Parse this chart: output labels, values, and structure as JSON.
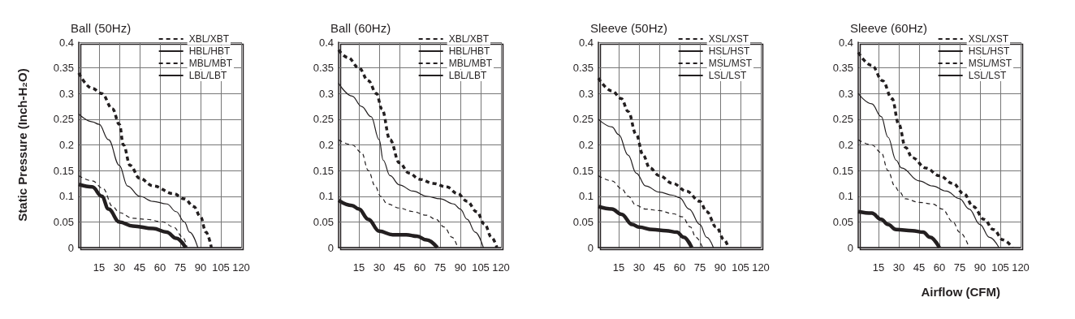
{
  "chart_data": [
    {
      "type": "line",
      "title": "Ball (50Hz)",
      "ylabel": "Static Pressure (Inch-H₂O)",
      "xlim": [
        0,
        120
      ],
      "xticks": [
        15,
        30,
        45,
        60,
        75,
        90,
        105,
        120
      ],
      "ylim": [
        0,
        0.4
      ],
      "yticks": [
        0,
        0.05,
        0.1,
        0.15,
        0.2,
        0.25,
        0.3,
        0.35,
        0.4
      ],
      "grid": true,
      "legend": "top right",
      "marker": "none",
      "series": [
        {
          "name": "XBL/XBT",
          "color": "#231f20",
          "line_style": "dashed",
          "x": [
            0,
            10,
            17,
            25,
            30,
            33,
            38,
            45,
            55,
            70,
            78,
            85,
            90,
            94,
            98
          ],
          "values": [
            0.34,
            0.31,
            0.3,
            0.27,
            0.24,
            0.2,
            0.16,
            0.135,
            0.12,
            0.105,
            0.095,
            0.08,
            0.06,
            0.03,
            0
          ]
        },
        {
          "name": "HBL/HBT",
          "color": "#231f20",
          "line_style": "solid",
          "x": [
            0,
            10,
            15,
            22,
            30,
            36,
            45,
            55,
            65,
            72,
            78,
            82,
            88
          ],
          "values": [
            0.26,
            0.245,
            0.24,
            0.21,
            0.16,
            0.12,
            0.1,
            0.09,
            0.085,
            0.07,
            0.05,
            0.03,
            0
          ]
        },
        {
          "name": "MBL/MBT",
          "color": "#231f20",
          "line_style": "dashed",
          "x": [
            0,
            10,
            18,
            25,
            30,
            40,
            50,
            62,
            70,
            77,
            80
          ],
          "values": [
            0.14,
            0.13,
            0.115,
            0.08,
            0.068,
            0.057,
            0.055,
            0.05,
            0.04,
            0.02,
            0
          ]
        },
        {
          "name": "LBL/LBT",
          "color": "#231f20",
          "line_style": "solid",
          "x": [
            0,
            10,
            17,
            22,
            30,
            40,
            55,
            65,
            72,
            79
          ],
          "values": [
            0.123,
            0.118,
            0.1,
            0.075,
            0.05,
            0.042,
            0.037,
            0.03,
            0.018,
            0
          ]
        }
      ]
    },
    {
      "type": "line",
      "title": "Ball (60Hz)",
      "xlim": [
        0,
        120
      ],
      "xticks": [
        15,
        30,
        45,
        60,
        75,
        90,
        105,
        120
      ],
      "ylim": [
        0,
        0.4
      ],
      "yticks": [
        0,
        0.05,
        0.1,
        0.15,
        0.2,
        0.25,
        0.3,
        0.35,
        0.4
      ],
      "grid": true,
      "legend": "top right",
      "marker": "none",
      "series": [
        {
          "name": "XBL/XBT",
          "color": "#231f20",
          "line_style": "dashed",
          "x": [
            0,
            7,
            15,
            22,
            28,
            32,
            38,
            45,
            52,
            60,
            70,
            80,
            88,
            95,
            102,
            108,
            113,
            117
          ],
          "values": [
            0.385,
            0.37,
            0.35,
            0.325,
            0.3,
            0.27,
            0.21,
            0.165,
            0.145,
            0.133,
            0.125,
            0.118,
            0.105,
            0.09,
            0.07,
            0.045,
            0.02,
            0
          ]
        },
        {
          "name": "HBL/HBT",
          "color": "#231f20",
          "line_style": "solid",
          "x": [
            0,
            10,
            17,
            24,
            30,
            33,
            38,
            45,
            55,
            65,
            75,
            85,
            90,
            95,
            101,
            107
          ],
          "values": [
            0.32,
            0.295,
            0.275,
            0.255,
            0.21,
            0.17,
            0.14,
            0.122,
            0.11,
            0.1,
            0.095,
            0.085,
            0.075,
            0.055,
            0.03,
            0
          ]
        },
        {
          "name": "MBL/MBT",
          "color": "#231f20",
          "line_style": "dashed",
          "x": [
            0,
            10,
            17,
            22,
            27,
            31,
            36,
            45,
            55,
            65,
            72,
            78,
            84,
            88
          ],
          "values": [
            0.21,
            0.2,
            0.185,
            0.15,
            0.12,
            0.1,
            0.085,
            0.077,
            0.07,
            0.063,
            0.055,
            0.04,
            0.02,
            0
          ]
        },
        {
          "name": "LBL/LBT",
          "color": "#231f20",
          "line_style": "solid",
          "x": [
            0,
            10,
            15,
            22,
            30,
            40,
            50,
            58,
            65,
            73
          ],
          "values": [
            0.092,
            0.082,
            0.075,
            0.055,
            0.032,
            0.025,
            0.025,
            0.022,
            0.015,
            0
          ]
        }
      ]
    },
    {
      "type": "line",
      "title": "Sleeve (50Hz)",
      "xlim": [
        0,
        120
      ],
      "xticks": [
        15,
        30,
        45,
        60,
        75,
        90,
        105,
        120
      ],
      "ylim": [
        0,
        0.4
      ],
      "yticks": [
        0,
        0.05,
        0.1,
        0.15,
        0.2,
        0.25,
        0.3,
        0.35,
        0.4
      ],
      "grid": true,
      "legend": "top right",
      "marker": "none",
      "series": [
        {
          "name": "XSL/XST",
          "color": "#231f20",
          "line_style": "dashed",
          "x": [
            0,
            10,
            17,
            22,
            28,
            33,
            38,
            45,
            55,
            65,
            75,
            80,
            87,
            93,
            96
          ],
          "values": [
            0.33,
            0.305,
            0.29,
            0.265,
            0.22,
            0.18,
            0.155,
            0.14,
            0.125,
            0.11,
            0.09,
            0.07,
            0.04,
            0.015,
            0
          ]
        },
        {
          "name": "HSL/HST",
          "color": "#231f20",
          "line_style": "solid",
          "x": [
            0,
            10,
            15,
            22,
            28,
            35,
            45,
            55,
            60,
            67,
            75,
            80,
            85
          ],
          "values": [
            0.25,
            0.235,
            0.22,
            0.18,
            0.145,
            0.12,
            0.108,
            0.102,
            0.097,
            0.075,
            0.045,
            0.02,
            0
          ]
        },
        {
          "name": "MSL/MST",
          "color": "#231f20",
          "line_style": "dashed",
          "x": [
            0,
            10,
            17,
            22,
            28,
            35,
            45,
            55,
            62,
            68,
            72,
            77
          ],
          "values": [
            0.14,
            0.13,
            0.115,
            0.1,
            0.082,
            0.075,
            0.072,
            0.066,
            0.06,
            0.04,
            0.02,
            0
          ]
        },
        {
          "name": "LSL/LST",
          "color": "#231f20",
          "line_style": "solid",
          "x": [
            0,
            10,
            17,
            25,
            30,
            40,
            50,
            58,
            63,
            69
          ],
          "values": [
            0.08,
            0.075,
            0.065,
            0.045,
            0.04,
            0.035,
            0.033,
            0.03,
            0.02,
            0
          ]
        }
      ]
    },
    {
      "type": "line",
      "title": "Sleeve (60Hz)",
      "xlabel": "Airflow (CFM)",
      "xlim": [
        0,
        120
      ],
      "xticks": [
        15,
        30,
        45,
        60,
        75,
        90,
        105,
        120
      ],
      "ylim": [
        0,
        0.4
      ],
      "yticks": [
        0,
        0.05,
        0.1,
        0.15,
        0.2,
        0.25,
        0.3,
        0.35,
        0.4
      ],
      "grid": true,
      "legend": "top right",
      "marker": "none",
      "series": [
        {
          "name": "XSL/XST",
          "color": "#231f20",
          "line_style": "dashed",
          "x": [
            0,
            10,
            18,
            25,
            30,
            35,
            40,
            50,
            60,
            70,
            78,
            85,
            93,
            100,
            107,
            114
          ],
          "values": [
            0.38,
            0.355,
            0.325,
            0.29,
            0.24,
            0.195,
            0.175,
            0.155,
            0.14,
            0.125,
            0.105,
            0.08,
            0.055,
            0.035,
            0.015,
            0
          ]
        },
        {
          "name": "HSL/HST",
          "color": "#231f20",
          "line_style": "solid",
          "x": [
            0,
            10,
            17,
            22,
            28,
            32,
            45,
            55,
            65,
            75,
            82,
            90,
            97,
            104
          ],
          "values": [
            0.3,
            0.28,
            0.255,
            0.215,
            0.17,
            0.155,
            0.13,
            0.12,
            0.11,
            0.095,
            0.075,
            0.045,
            0.02,
            0
          ]
        },
        {
          "name": "MSL/MST",
          "color": "#231f20",
          "line_style": "dashed",
          "x": [
            0,
            10,
            17,
            22,
            27,
            30,
            35,
            45,
            55,
            62,
            70,
            75,
            82
          ],
          "values": [
            0.21,
            0.2,
            0.185,
            0.15,
            0.12,
            0.11,
            0.095,
            0.088,
            0.085,
            0.075,
            0.05,
            0.03,
            0
          ]
        },
        {
          "name": "LSL/LST",
          "color": "#231f20",
          "line_style": "solid",
          "x": [
            0,
            10,
            17,
            22,
            28,
            40,
            48,
            53,
            60
          ],
          "values": [
            0.07,
            0.067,
            0.055,
            0.045,
            0.035,
            0.033,
            0.03,
            0.02,
            0
          ]
        }
      ]
    }
  ]
}
